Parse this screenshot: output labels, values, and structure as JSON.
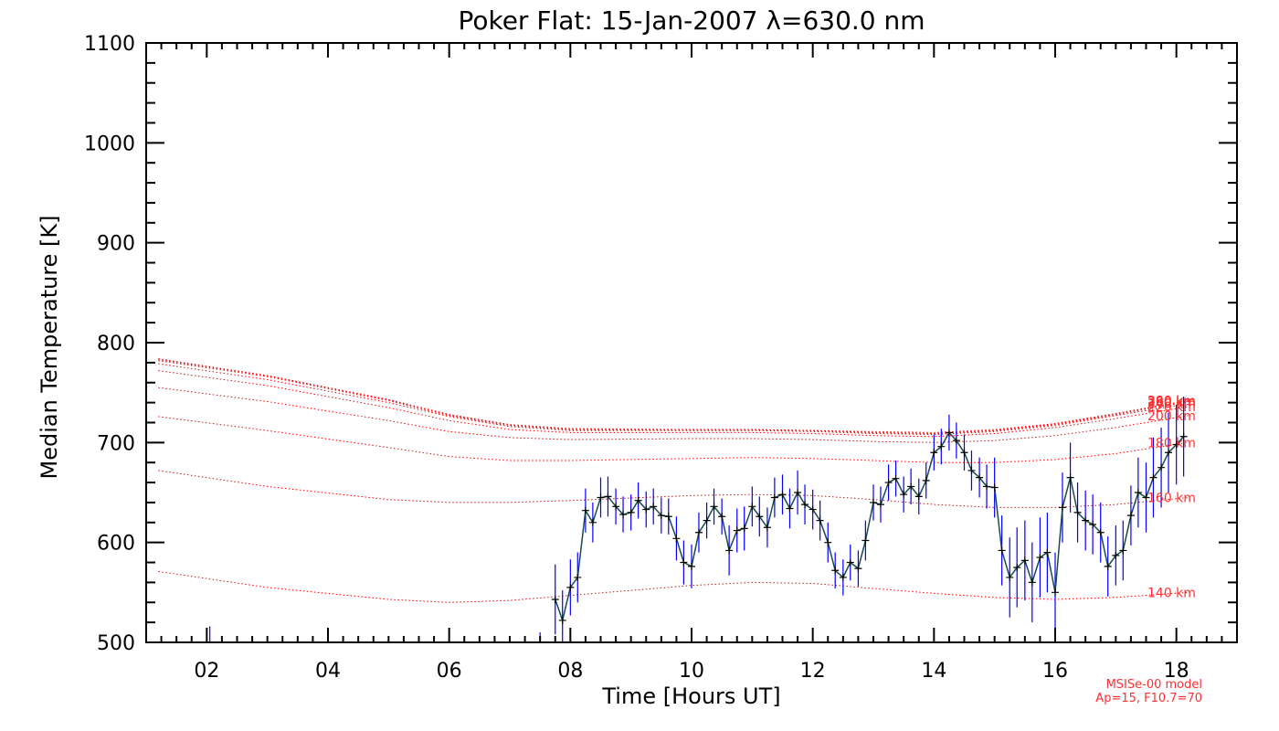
{
  "chart_data": {
    "type": "line",
    "title": "Poker Flat: 15-Jan-2007 λ=630.0 nm",
    "xlabel": "Time [Hours UT]",
    "ylabel": "Median Temperature [K]",
    "xlim": [
      1.0,
      19.0
    ],
    "ylim": [
      500,
      1100
    ],
    "x_ticks": [
      2,
      4,
      6,
      8,
      10,
      12,
      14,
      16,
      18
    ],
    "x_tick_labels": [
      "02",
      "04",
      "06",
      "08",
      "10",
      "12",
      "14",
      "16",
      "18"
    ],
    "y_ticks": [
      500,
      600,
      700,
      800,
      900,
      1000,
      1100
    ],
    "y_tick_labels": [
      "500",
      "600",
      "700",
      "800",
      "900",
      "1000",
      "1100"
    ],
    "model_note": [
      "MSISe-00 model",
      "Ap=15, F10.7=70"
    ],
    "colors": {
      "data": "#000000",
      "errorbar": "#0000ff",
      "model": "#ff0000",
      "model_text": "#ff3030"
    },
    "model_series": [
      {
        "name": "140 km",
        "x": [
          1.2,
          3,
          5,
          6,
          7,
          8,
          10,
          11,
          12,
          13,
          14,
          15,
          16,
          17,
          18.2
        ],
        "values": [
          571,
          555,
          543,
          540,
          542,
          547,
          557,
          560,
          559,
          554,
          549,
          545,
          543,
          545,
          550
        ]
      },
      {
        "name": "160 km",
        "x": [
          1.2,
          3,
          5,
          6,
          7,
          8,
          10,
          11,
          12,
          13,
          14,
          15,
          16,
          17,
          18.2
        ],
        "values": [
          672,
          656,
          643,
          640,
          640,
          642,
          647,
          648,
          647,
          643,
          638,
          635,
          635,
          638,
          645
        ]
      },
      {
        "name": "180 km",
        "x": [
          1.2,
          3,
          5,
          6,
          7,
          8,
          10,
          11,
          12,
          13,
          14,
          15,
          16,
          17,
          18.2
        ],
        "values": [
          726,
          712,
          695,
          686,
          682,
          682,
          684,
          685,
          684,
          682,
          680,
          680,
          683,
          689,
          700
        ]
      },
      {
        "name": "200 km",
        "x": [
          1.2,
          3,
          5,
          6,
          7,
          8,
          10,
          11,
          12,
          13,
          14,
          15,
          16,
          17,
          18.2
        ],
        "values": [
          755,
          741,
          722,
          711,
          705,
          703,
          704,
          704,
          703,
          701,
          700,
          702,
          707,
          715,
          727
        ]
      },
      {
        "name": "220 km",
        "x": [
          1.2,
          3,
          5,
          6,
          7,
          8,
          10,
          11,
          12,
          13,
          14,
          15,
          16,
          17,
          18.2
        ],
        "values": [
          772,
          757,
          735,
          722,
          713,
          710,
          710,
          710,
          709,
          707,
          706,
          709,
          715,
          724,
          736
        ]
      },
      {
        "name": "240 km",
        "x": [
          1.2,
          3,
          5,
          6,
          7,
          8,
          10,
          11,
          12,
          13,
          14,
          15,
          16,
          17,
          18.2
        ],
        "values": [
          779,
          763,
          740,
          726,
          716,
          712,
          712,
          712,
          711,
          709,
          708,
          711,
          717,
          727,
          739
        ]
      },
      {
        "name": "260 km",
        "x": [
          1.2,
          3,
          5,
          6,
          7,
          8,
          10,
          11,
          12,
          13,
          14,
          15,
          16,
          17,
          18.2
        ],
        "values": [
          782,
          766,
          742,
          727,
          717,
          713,
          713,
          713,
          712,
          710,
          709,
          712,
          718,
          728,
          741
        ]
      },
      {
        "name": "280 km",
        "x": [
          1.2,
          3,
          5,
          6,
          7,
          8,
          10,
          11,
          12,
          13,
          14,
          15,
          16,
          17,
          18.2
        ],
        "values": [
          783,
          767,
          743,
          728,
          718,
          713,
          713,
          713,
          712,
          710,
          709,
          712,
          719,
          729,
          742
        ]
      },
      {
        "name": "300 km",
        "x": [
          1.2,
          3,
          5,
          6,
          7,
          8,
          10,
          11,
          12,
          13,
          14,
          15,
          16,
          17,
          18.2
        ],
        "values": [
          784,
          767,
          743,
          728,
          718,
          714,
          713,
          713,
          712,
          711,
          710,
          713,
          719,
          729,
          742
        ]
      }
    ],
    "series": [
      {
        "x": [
          7.75,
          7.87,
          8.0,
          8.12,
          8.25,
          8.37,
          8.5,
          8.62,
          8.75,
          8.87,
          9.0,
          9.12,
          9.25,
          9.37,
          9.5,
          9.62,
          9.75,
          9.87,
          10.0,
          10.12,
          10.25,
          10.37,
          10.5,
          10.62,
          10.75,
          10.87,
          11.0,
          11.12,
          11.25,
          11.37,
          11.5,
          11.62,
          11.75,
          11.87,
          12.0,
          12.12,
          12.25,
          12.37,
          12.5,
          12.62,
          12.75,
          12.87,
          13.0,
          13.12,
          13.25,
          13.37,
          13.5,
          13.62,
          13.75,
          13.87,
          14.0,
          14.12,
          14.25,
          14.37,
          14.5,
          14.62,
          14.75,
          14.87,
          15.0,
          15.12,
          15.25,
          15.37,
          15.5,
          15.62,
          15.75,
          15.87,
          16.0,
          16.12,
          16.25,
          16.37,
          16.5,
          16.62,
          16.75,
          16.87,
          17.0,
          17.12,
          17.25,
          17.37,
          17.5,
          17.62,
          17.75,
          17.87,
          18.0,
          18.12
        ],
        "values": [
          543,
          522,
          555,
          565,
          632,
          620,
          645,
          646,
          636,
          628,
          630,
          642,
          633,
          636,
          627,
          626,
          604,
          580,
          576,
          610,
          622,
          636,
          626,
          592,
          612,
          614,
          636,
          626,
          615,
          645,
          648,
          634,
          650,
          638,
          633,
          622,
          600,
          572,
          565,
          580,
          574,
          602,
          640,
          638,
          660,
          664,
          648,
          656,
          646,
          662,
          690,
          696,
          710,
          702,
          690,
          672,
          665,
          656,
          655,
          592,
          565,
          575,
          582,
          560,
          585,
          590,
          550,
          635,
          665,
          630,
          622,
          618,
          610,
          576,
          587,
          592,
          627,
          650,
          645,
          665,
          675,
          690,
          698,
          706
        ],
        "errors": [
          35,
          30,
          28,
          25,
          22,
          20,
          20,
          20,
          18,
          18,
          18,
          18,
          18,
          18,
          18,
          18,
          22,
          22,
          22,
          20,
          18,
          18,
          18,
          25,
          22,
          22,
          20,
          20,
          20,
          20,
          20,
          20,
          22,
          20,
          20,
          20,
          20,
          18,
          18,
          18,
          18,
          20,
          18,
          18,
          18,
          18,
          18,
          18,
          18,
          18,
          18,
          18,
          18,
          18,
          18,
          20,
          20,
          22,
          30,
          35,
          40,
          40,
          40,
          40,
          40,
          40,
          40,
          35,
          35,
          30,
          30,
          30,
          30,
          30,
          30,
          30,
          30,
          35,
          35,
          40,
          40,
          40,
          40,
          40
        ]
      }
    ]
  }
}
